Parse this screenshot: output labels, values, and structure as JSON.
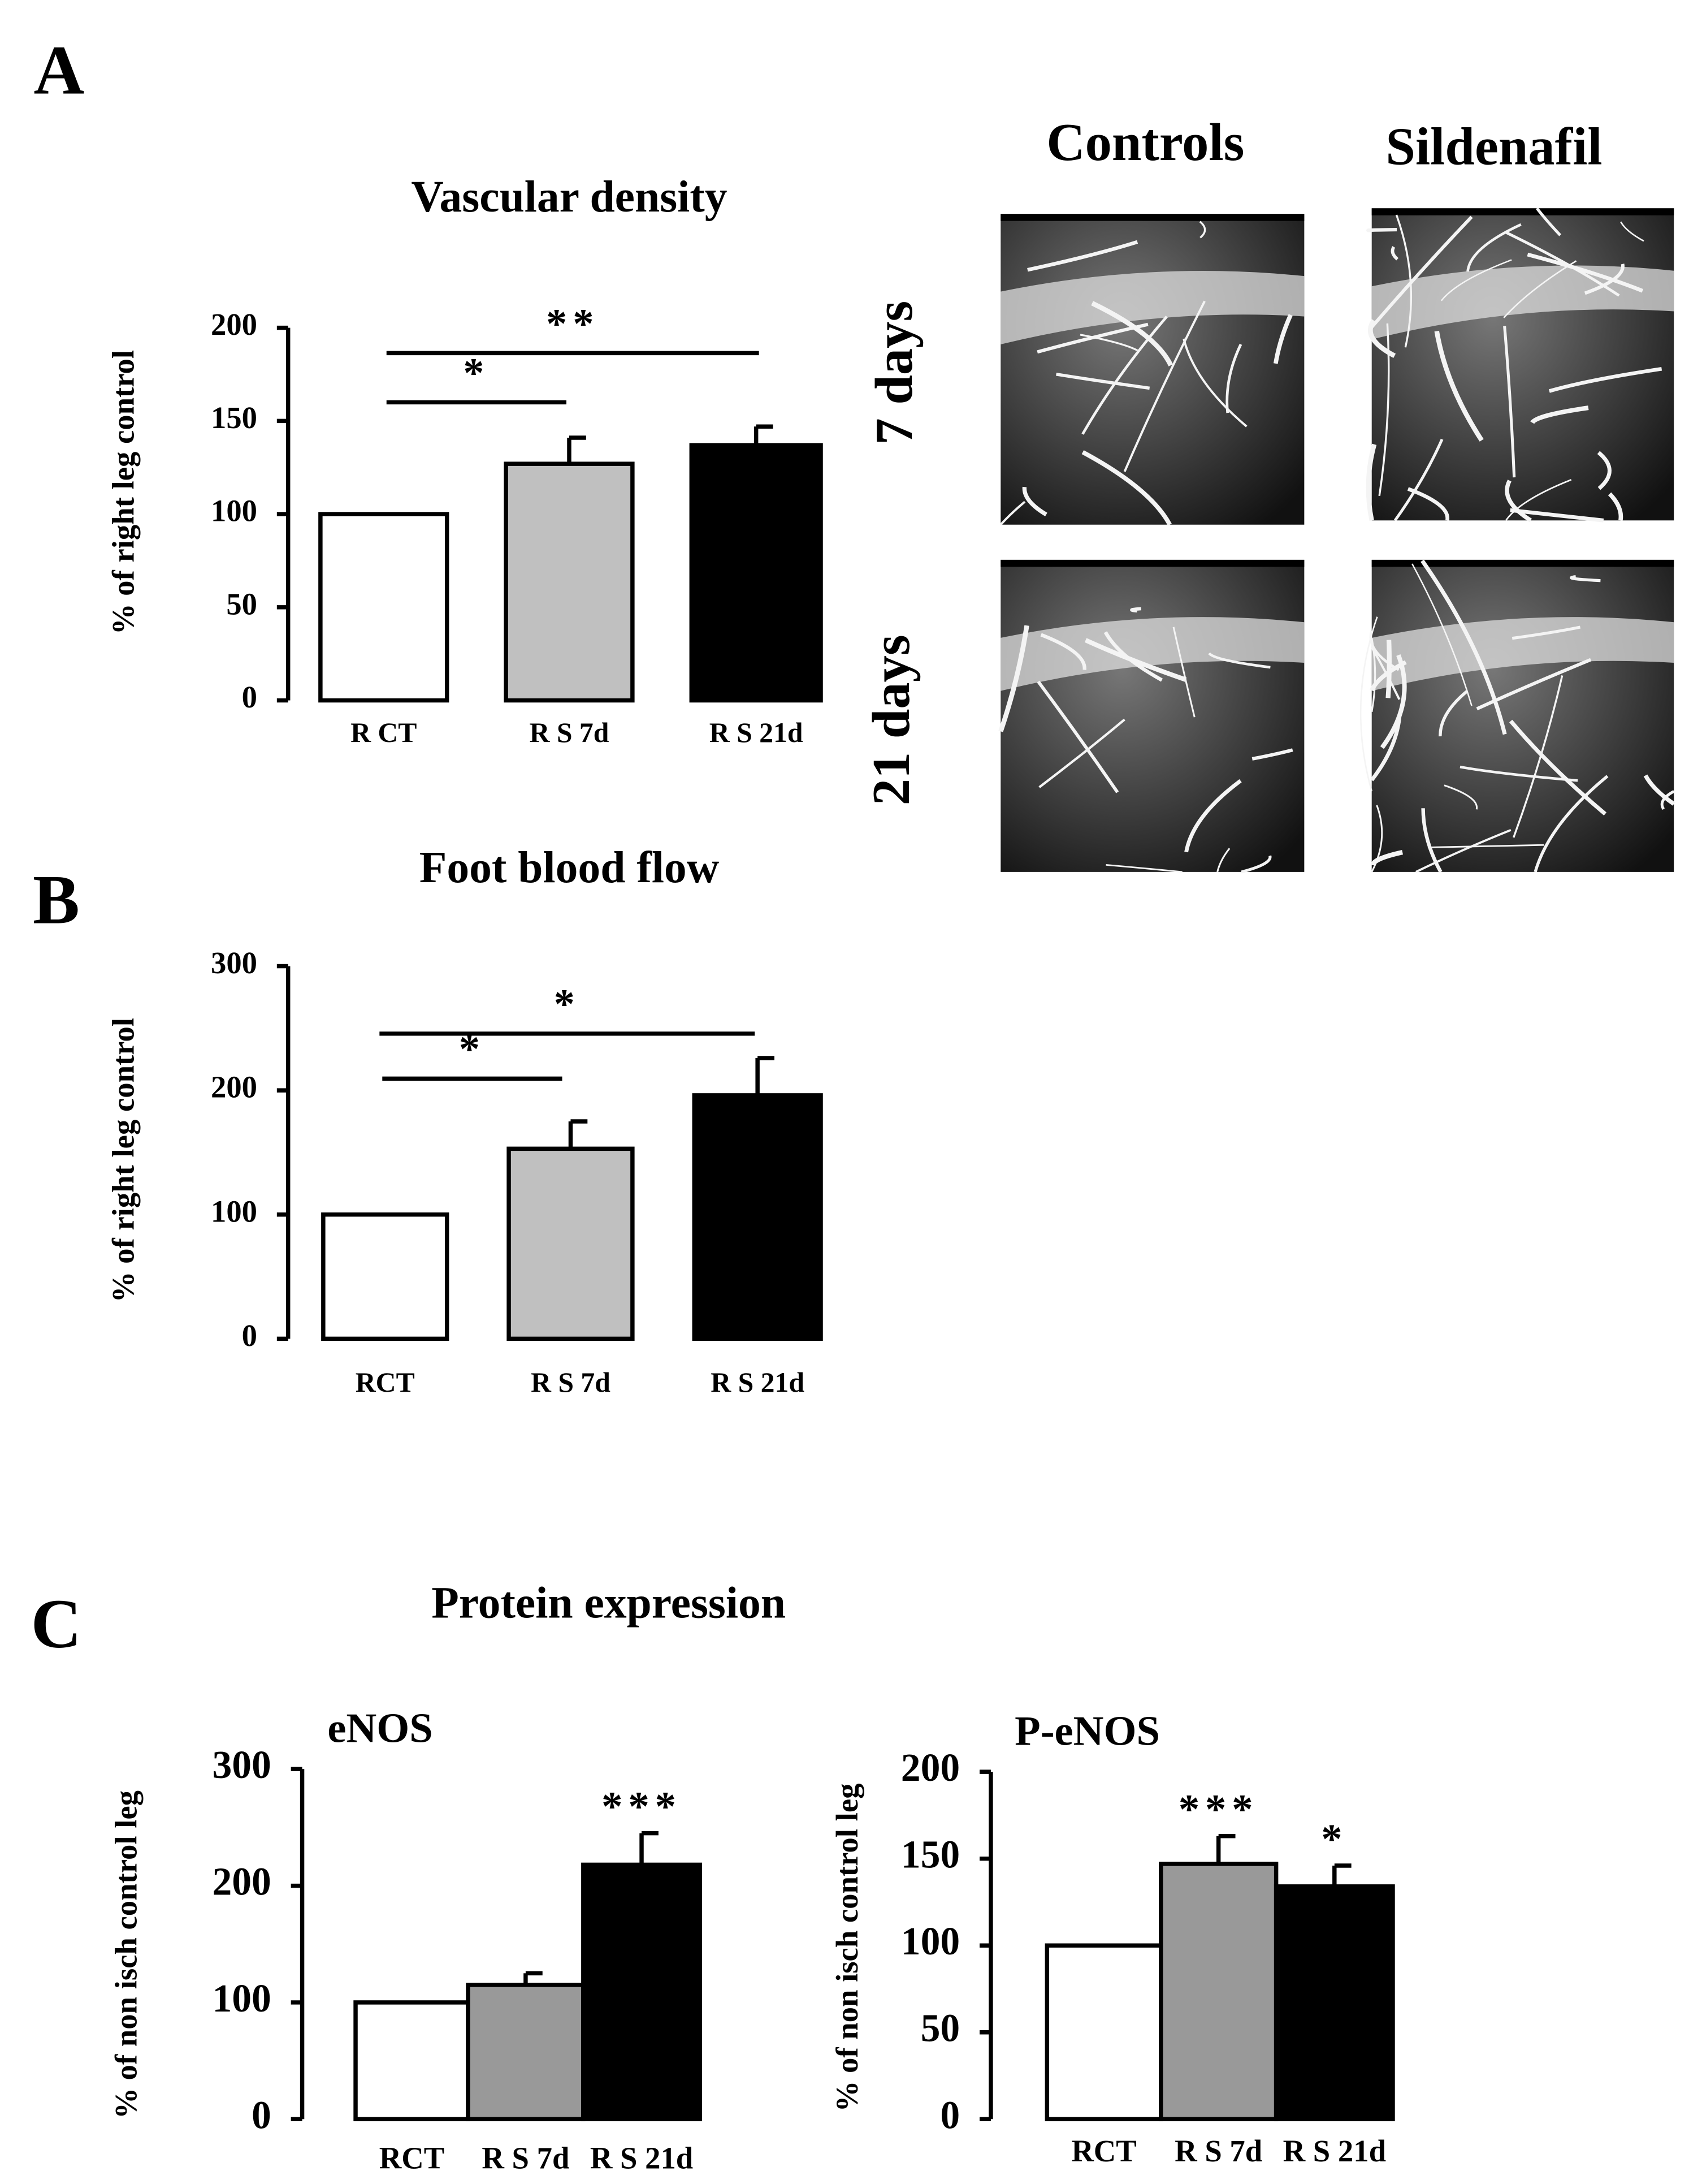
{
  "panel_labels": [
    "A",
    "B",
    "C"
  ],
  "section_title": "Protein expression",
  "angiograms": {
    "columns": [
      "Controls",
      "Sildenafil"
    ],
    "rows": [
      "7 days",
      "21 days"
    ]
  },
  "chart_data": [
    {
      "type": "bar",
      "title": "Vascular density",
      "ylabel": "% of right leg control",
      "categories": [
        "R CT",
        "R S 7d",
        "R S 21d"
      ],
      "values": [
        100,
        127,
        137
      ],
      "errors": [
        null,
        14,
        10
      ],
      "colors": [
        "#ffffff",
        "#c0c0c0",
        "#000000"
      ],
      "ylim": [
        0,
        200
      ],
      "yticks": [
        0,
        50,
        100,
        150,
        200
      ],
      "annotations": [
        {
          "text": "*",
          "between": [
            0,
            1
          ]
        },
        {
          "text": "**",
          "between": [
            0,
            2
          ]
        }
      ]
    },
    {
      "type": "bar",
      "title": "Foot blood flow",
      "ylabel": "% of right leg control",
      "categories": [
        "RCT",
        "R S 7d",
        "R S 21d"
      ],
      "values": [
        100,
        153,
        196
      ],
      "errors": [
        null,
        22,
        30
      ],
      "colors": [
        "#ffffff",
        "#c0c0c0",
        "#000000"
      ],
      "ylim": [
        0,
        300
      ],
      "yticks": [
        0,
        100,
        200,
        300
      ],
      "annotations": [
        {
          "text": "*",
          "between": [
            0,
            1
          ]
        },
        {
          "text": "*",
          "between": [
            0,
            2
          ]
        }
      ]
    },
    {
      "type": "bar",
      "title": "eNOS",
      "ylabel": "% of non isch control leg",
      "categories": [
        "RCT",
        "R S 7d",
        "R S 21d"
      ],
      "values": [
        100,
        115,
        218
      ],
      "errors": [
        null,
        10,
        27
      ],
      "colors": [
        "#ffffff",
        "#999999",
        "#000000"
      ],
      "ylim": [
        0,
        300
      ],
      "yticks": [
        0,
        100,
        200,
        300
      ],
      "annotations": [
        {
          "text": "***",
          "category": 2
        }
      ]
    },
    {
      "type": "bar",
      "title": "P-eNOS",
      "ylabel": "% of non isch control leg",
      "categories": [
        "RCT",
        "R S 7d",
        "R S 21d"
      ],
      "values": [
        100,
        147,
        134
      ],
      "errors": [
        null,
        16,
        12
      ],
      "colors": [
        "#ffffff",
        "#999999",
        "#000000"
      ],
      "ylim": [
        0,
        200
      ],
      "yticks": [
        0,
        50,
        100,
        150,
        200
      ],
      "annotations": [
        {
          "text": "***",
          "category": 1
        },
        {
          "text": "*",
          "category": 2
        }
      ]
    }
  ]
}
